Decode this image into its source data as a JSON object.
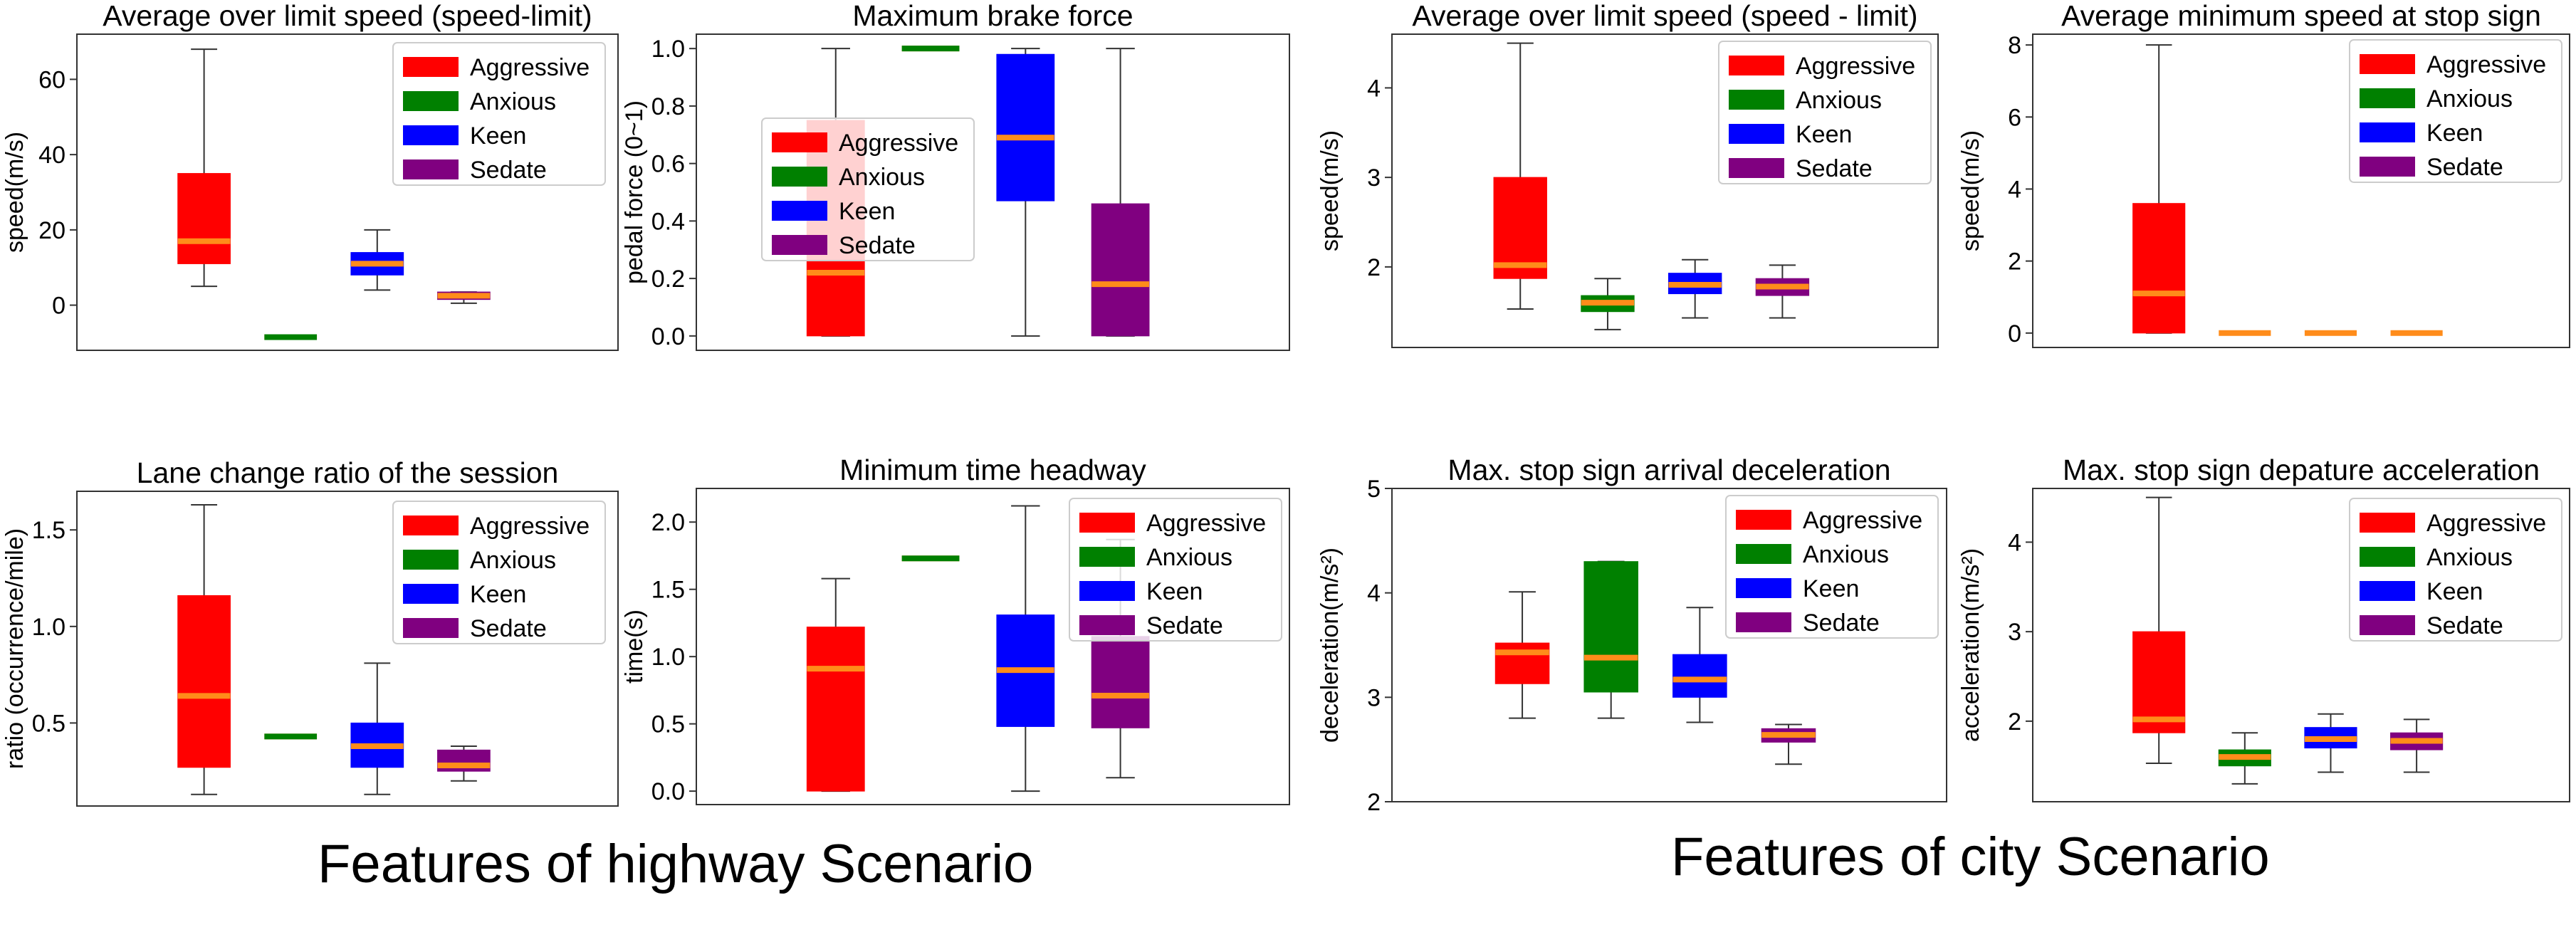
{
  "captions": {
    "highway": "Features of highway Scenario",
    "city": "Features of city Scenario"
  },
  "median_color": "#ff8c1a",
  "chart_data": [
    {
      "type": "box",
      "title": "Average over limit speed (speed-limit)",
      "ylabel": "speed(m/s)",
      "ylim": [
        -12,
        72
      ],
      "yticks": [
        0,
        20,
        40,
        60
      ],
      "legend_position": "upper-right",
      "series": [
        {
          "name": "Aggressive",
          "color": "#ff0000",
          "whisker_low": 5,
          "q1": 11,
          "median": 17,
          "q3": 35,
          "whisker_high": 68
        },
        {
          "name": "Anxious",
          "color": "#008000",
          "whisker_low": -8.5,
          "q1": -8.5,
          "median": -8.5,
          "q3": -8.5,
          "whisker_high": -8.5
        },
        {
          "name": "Keen",
          "color": "#0000ff",
          "whisker_low": 4,
          "q1": 8,
          "median": 11,
          "q3": 14,
          "whisker_high": 20
        },
        {
          "name": "Sedate",
          "color": "#800080",
          "whisker_low": 0.5,
          "q1": 1.5,
          "median": 2.5,
          "q3": 3.5,
          "whisker_high": 3.5
        }
      ]
    },
    {
      "type": "box",
      "title": "Maximum brake force",
      "ylabel": "pedal force (0~1)",
      "ylim": [
        -0.05,
        1.05
      ],
      "yticks": [
        0.0,
        0.2,
        0.4,
        0.6,
        0.8,
        1.0
      ],
      "legend_position": "center-left",
      "series": [
        {
          "name": "Aggressive",
          "color": "#ff0000",
          "whisker_low": 0.0,
          "q1": 0.0,
          "median": 0.22,
          "q3": 0.75,
          "whisker_high": 1.0
        },
        {
          "name": "Anxious",
          "color": "#008000",
          "whisker_low": 1.0,
          "q1": 1.0,
          "median": 1.0,
          "q3": 1.0,
          "whisker_high": 1.0
        },
        {
          "name": "Keen",
          "color": "#0000ff",
          "whisker_low": 0.0,
          "q1": 0.47,
          "median": 0.69,
          "q3": 0.98,
          "whisker_high": 1.0
        },
        {
          "name": "Sedate",
          "color": "#800080",
          "whisker_low": 0.0,
          "q1": 0.0,
          "median": 0.18,
          "q3": 0.46,
          "whisker_high": 1.0
        }
      ]
    },
    {
      "type": "box",
      "title": "Average over limit speed (speed - limit)",
      "ylabel": "speed(m/s)",
      "ylim": [
        1.1,
        4.6
      ],
      "yticks": [
        2,
        3,
        4
      ],
      "legend_position": "upper-right",
      "series": [
        {
          "name": "Aggressive",
          "color": "#ff0000",
          "whisker_low": 1.53,
          "q1": 1.87,
          "median": 2.02,
          "q3": 3.0,
          "whisker_high": 4.5
        },
        {
          "name": "Anxious",
          "color": "#008000",
          "whisker_low": 1.3,
          "q1": 1.5,
          "median": 1.6,
          "q3": 1.68,
          "whisker_high": 1.87
        },
        {
          "name": "Keen",
          "color": "#0000ff",
          "whisker_low": 1.43,
          "q1": 1.7,
          "median": 1.8,
          "q3": 1.93,
          "whisker_high": 2.08
        },
        {
          "name": "Sedate",
          "color": "#800080",
          "whisker_low": 1.43,
          "q1": 1.68,
          "median": 1.78,
          "q3": 1.87,
          "whisker_high": 2.02
        }
      ]
    },
    {
      "type": "box",
      "title": "Average minimum speed at stop sign",
      "ylabel": "speed(m/s)",
      "ylim": [
        -0.4,
        8.3
      ],
      "yticks": [
        0,
        2,
        4,
        6,
        8
      ],
      "legend_position": "upper-right",
      "series": [
        {
          "name": "Aggressive",
          "color": "#ff0000",
          "whisker_low": 0.0,
          "q1": 0.0,
          "median": 1.1,
          "q3": 3.6,
          "whisker_high": 8.0
        },
        {
          "name": "Anxious",
          "color": "#008000",
          "whisker_low": 0.0,
          "q1": 0.0,
          "median": 0.0,
          "q3": 0.0,
          "whisker_high": 0.0
        },
        {
          "name": "Keen",
          "color": "#0000ff",
          "whisker_low": 0.0,
          "q1": 0.0,
          "median": 0.0,
          "q3": 0.0,
          "whisker_high": 0.0
        },
        {
          "name": "Sedate",
          "color": "#800080",
          "whisker_low": 0.0,
          "q1": 0.0,
          "median": 0.0,
          "q3": 0.0,
          "whisker_high": 0.0
        }
      ]
    },
    {
      "type": "box",
      "title": "Lane change ratio of the session",
      "ylabel": "ratio (occurrence/mile)",
      "ylim": [
        0.07,
        1.7
      ],
      "yticks": [
        0.5,
        1.0,
        1.5
      ],
      "legend_position": "upper-right",
      "series": [
        {
          "name": "Aggressive",
          "color": "#ff0000",
          "whisker_low": 0.13,
          "q1": 0.27,
          "median": 0.64,
          "q3": 1.16,
          "whisker_high": 1.63
        },
        {
          "name": "Anxious",
          "color": "#008000",
          "whisker_low": 0.43,
          "q1": 0.43,
          "median": 0.43,
          "q3": 0.43,
          "whisker_high": 0.43
        },
        {
          "name": "Keen",
          "color": "#0000ff",
          "whisker_low": 0.13,
          "q1": 0.27,
          "median": 0.38,
          "q3": 0.5,
          "whisker_high": 0.81
        },
        {
          "name": "Sedate",
          "color": "#800080",
          "whisker_low": 0.2,
          "q1": 0.25,
          "median": 0.28,
          "q3": 0.36,
          "whisker_high": 0.38
        }
      ]
    },
    {
      "type": "box",
      "title": "Minimum time headway",
      "ylabel": "time(s)",
      "ylim": [
        -0.1,
        2.25
      ],
      "yticks": [
        0.0,
        0.5,
        1.0,
        1.5,
        2.0
      ],
      "legend_position": "upper-right",
      "series": [
        {
          "name": "Aggressive",
          "color": "#ff0000",
          "whisker_low": 0.0,
          "q1": 0.0,
          "median": 0.91,
          "q3": 1.22,
          "whisker_high": 1.58
        },
        {
          "name": "Anxious",
          "color": "#008000",
          "whisker_low": 1.73,
          "q1": 1.73,
          "median": 1.73,
          "q3": 1.73,
          "whisker_high": 1.73
        },
        {
          "name": "Keen",
          "color": "#0000ff",
          "whisker_low": 0.0,
          "q1": 0.48,
          "median": 0.9,
          "q3": 1.31,
          "whisker_high": 2.12
        },
        {
          "name": "Sedate",
          "color": "#800080",
          "whisker_low": 0.1,
          "q1": 0.47,
          "median": 0.71,
          "q3": 1.15,
          "whisker_high": 1.87
        }
      ]
    },
    {
      "type": "box",
      "title": "Max. stop sign arrival deceleration",
      "ylabel": "deceleration(m/s²)",
      "ylim": [
        2,
        5
      ],
      "yticks": [
        2,
        3,
        4,
        5
      ],
      "legend_position": "upper-right",
      "series": [
        {
          "name": "Aggressive",
          "color": "#ff0000",
          "whisker_low": 2.8,
          "q1": 3.13,
          "median": 3.43,
          "q3": 3.52,
          "whisker_high": 4.01
        },
        {
          "name": "Anxious",
          "color": "#008000",
          "whisker_low": 2.8,
          "q1": 3.05,
          "median": 3.38,
          "q3": 4.3,
          "whisker_high": 4.3
        },
        {
          "name": "Keen",
          "color": "#0000ff",
          "whisker_low": 2.76,
          "q1": 3.0,
          "median": 3.17,
          "q3": 3.41,
          "whisker_high": 3.86
        },
        {
          "name": "Sedate",
          "color": "#800080",
          "whisker_low": 2.36,
          "q1": 2.57,
          "median": 2.64,
          "q3": 2.7,
          "whisker_high": 2.74
        }
      ]
    },
    {
      "type": "box",
      "title": "Max. stop sign depature acceleration",
      "ylabel": "acceleration(m/s²)",
      "ylim": [
        1.1,
        4.6
      ],
      "yticks": [
        2,
        3,
        4
      ],
      "legend_position": "upper-right",
      "series": [
        {
          "name": "Aggressive",
          "color": "#ff0000",
          "whisker_low": 1.53,
          "q1": 1.87,
          "median": 2.02,
          "q3": 3.0,
          "whisker_high": 4.5
        },
        {
          "name": "Anxious",
          "color": "#008000",
          "whisker_low": 1.3,
          "q1": 1.5,
          "median": 1.6,
          "q3": 1.68,
          "whisker_high": 1.87
        },
        {
          "name": "Keen",
          "color": "#0000ff",
          "whisker_low": 1.43,
          "q1": 1.7,
          "median": 1.8,
          "q3": 1.93,
          "whisker_high": 2.08
        },
        {
          "name": "Sedate",
          "color": "#800080",
          "whisker_low": 1.43,
          "q1": 1.68,
          "median": 1.78,
          "q3": 1.87,
          "whisker_high": 2.02
        }
      ]
    }
  ]
}
